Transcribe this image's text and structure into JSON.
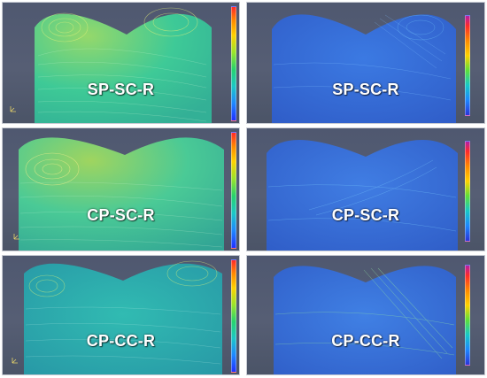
{
  "panels": [
    {
      "label": "SP-SC-R",
      "colormap": "left",
      "style": "green-dense"
    },
    {
      "label": "SP-SC-R",
      "colormap": "right",
      "style": "blue-sparse"
    },
    {
      "label": "CP-SC-R",
      "colormap": "left",
      "style": "green-dense"
    },
    {
      "label": "CP-SC-R",
      "colormap": "right",
      "style": "blue-sparse"
    },
    {
      "label": "CP-CC-R",
      "colormap": "left",
      "style": "teal-dense"
    },
    {
      "label": "CP-CC-R",
      "colormap": "right",
      "style": "blue-sparse"
    }
  ],
  "colors": {
    "background": "#565e74",
    "dome_outline": "#6a7590",
    "label_text": "#ffffff"
  }
}
